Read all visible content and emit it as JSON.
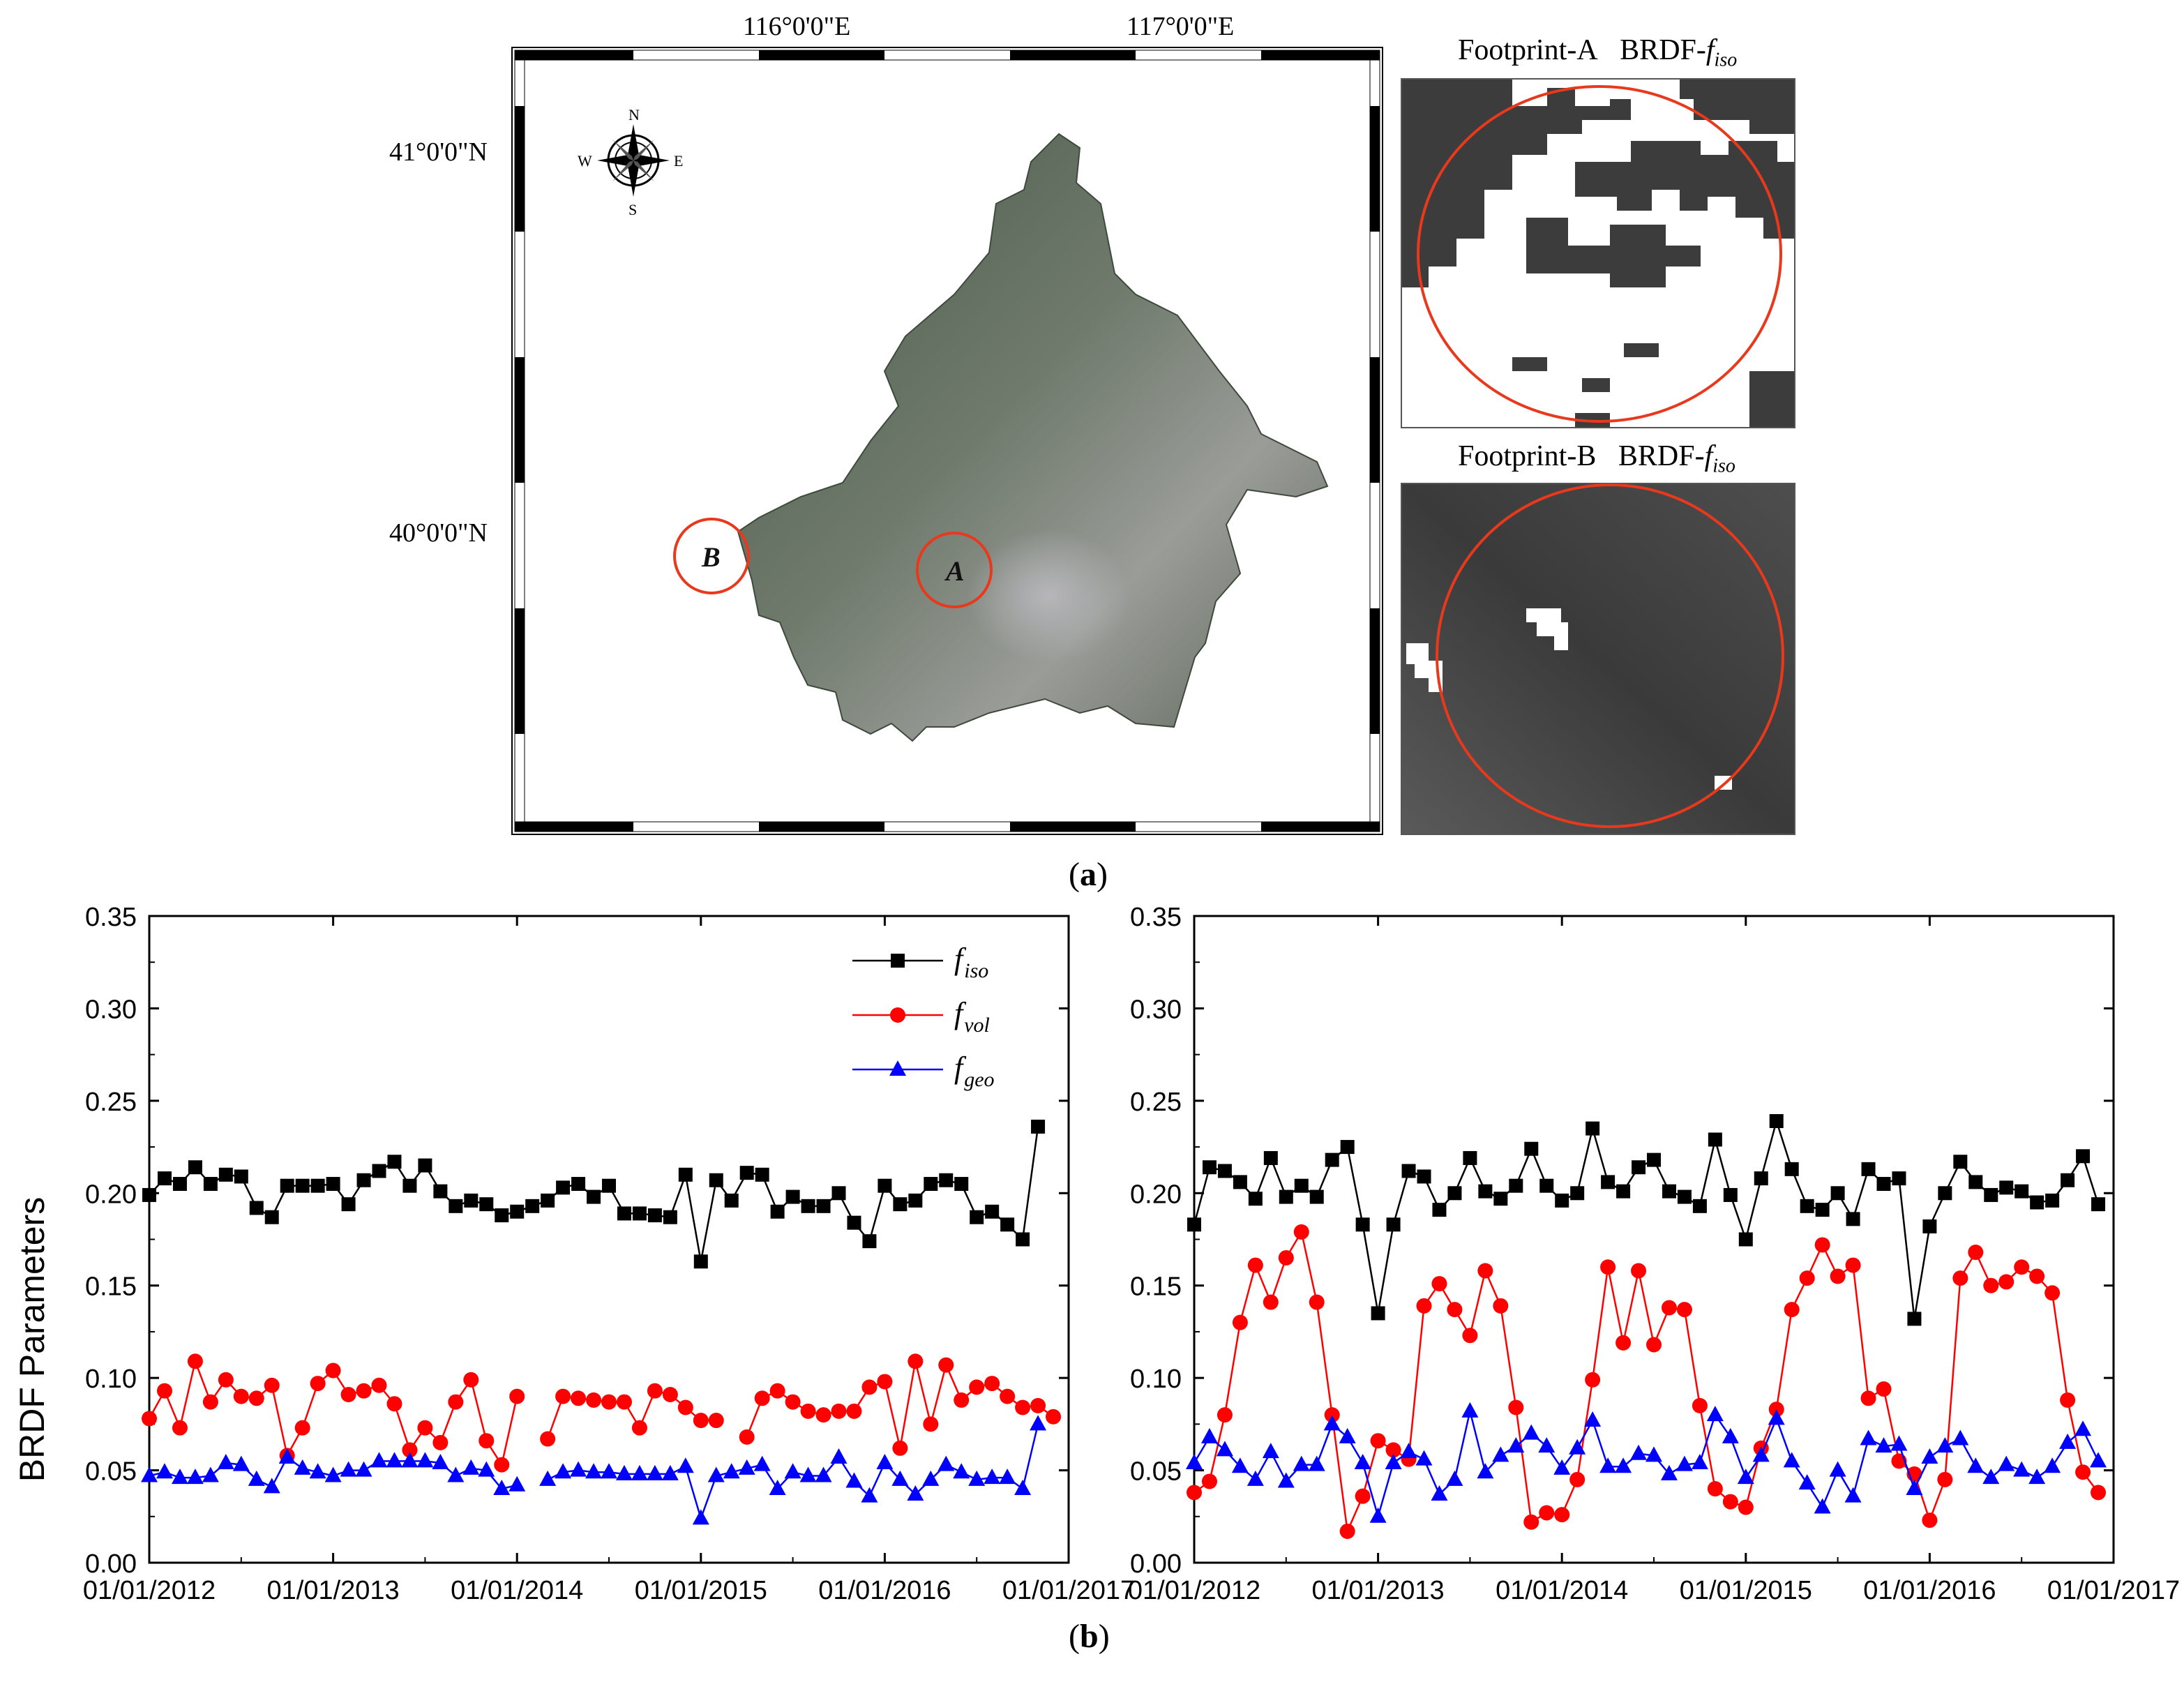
{
  "panel_labels": {
    "a": "a",
    "b": "b"
  },
  "map": {
    "lon_labels": [
      "116°0'0\"E",
      "117°0'0\"E"
    ],
    "lat_labels": [
      "41°0'0\"N",
      "40°0'0\"N"
    ],
    "compass": {
      "n": "N",
      "s": "S",
      "e": "E",
      "w": "W"
    },
    "site_labels": [
      "A",
      "B"
    ]
  },
  "footprints": [
    {
      "name": "Footprint-A",
      "param": "BRDF-",
      "f": "f",
      "sub": "iso"
    },
    {
      "name": "Footprint-B",
      "param": "BRDF-",
      "f": "f",
      "sub": "iso"
    }
  ],
  "colors": {
    "iso": "#000000",
    "vol": "#ff0000",
    "geo": "#0000ff",
    "circle": "#e8391d"
  },
  "chart_data": [
    {
      "type": "line",
      "title": "Footprint-A",
      "xlabel": "",
      "ylabel": "BRDF  Parameters",
      "ylim": [
        0,
        0.35
      ],
      "yticks": [
        "0.00",
        "0.05",
        "0.10",
        "0.15",
        "0.20",
        "0.25",
        "0.30",
        "0.35"
      ],
      "xlim": [
        0,
        60
      ],
      "xticks": [
        "01/01/2012",
        "01/01/2013",
        "01/01/2014",
        "01/01/2015",
        "01/01/2016",
        "01/01/2017"
      ],
      "legend": [
        {
          "f": "f",
          "sub": "iso",
          "marker": "square"
        },
        {
          "f": "f",
          "sub": "vol",
          "marker": "circle"
        },
        {
          "f": "f",
          "sub": "geo",
          "marker": "triangle"
        }
      ],
      "legend_position": "top-right",
      "x": [
        0,
        1,
        2,
        3,
        4,
        5,
        6,
        7,
        8,
        9,
        10,
        11,
        12,
        13,
        14,
        15,
        16,
        17,
        18,
        19,
        20,
        21,
        22,
        23,
        24,
        25,
        26,
        27,
        28,
        29,
        30,
        31,
        32,
        33,
        34,
        35,
        36,
        37,
        38,
        39,
        40,
        41,
        42,
        43,
        44,
        45,
        46,
        47,
        48,
        49,
        50,
        51,
        52,
        53,
        54,
        55,
        56,
        57,
        58,
        59
      ],
      "series": [
        {
          "name": "f_iso",
          "marker": "square",
          "values": [
            0.199,
            0.208,
            0.205,
            0.214,
            0.205,
            0.21,
            0.209,
            0.192,
            0.187,
            0.204,
            0.204,
            0.204,
            0.205,
            0.194,
            0.207,
            0.212,
            0.217,
            0.204,
            0.215,
            0.201,
            0.193,
            0.196,
            0.194,
            0.188,
            0.19,
            0.193,
            0.196,
            0.203,
            0.205,
            0.198,
            0.204,
            0.189,
            0.189,
            0.188,
            0.187,
            0.21,
            0.163,
            0.207,
            0.196,
            0.211,
            0.21,
            0.19,
            0.198,
            0.193,
            0.193,
            0.2,
            0.184,
            0.174,
            0.204,
            0.194,
            0.196,
            0.205,
            0.207,
            0.205,
            0.187,
            0.19,
            0.183,
            0.175,
            0.236,
            null
          ]
        },
        {
          "name": "f_vol",
          "marker": "circle",
          "values": [
            0.078,
            0.093,
            0.073,
            0.109,
            0.087,
            0.099,
            0.09,
            0.089,
            0.096,
            0.058,
            0.073,
            0.097,
            0.104,
            0.091,
            0.093,
            0.096,
            0.086,
            0.061,
            0.073,
            0.065,
            0.087,
            0.099,
            0.066,
            0.053,
            0.09,
            null,
            0.067,
            0.09,
            0.089,
            0.088,
            0.087,
            0.087,
            0.073,
            0.093,
            0.091,
            0.084,
            0.077,
            0.077,
            null,
            0.068,
            0.089,
            0.093,
            0.087,
            0.082,
            0.08,
            0.082,
            0.082,
            0.095,
            0.098,
            0.062,
            0.109,
            0.075,
            0.107,
            0.088,
            0.095,
            0.097,
            0.09,
            0.084,
            0.085,
            0.079
          ]
        },
        {
          "name": "f_geo",
          "marker": "triangle",
          "values": [
            0.047,
            0.049,
            0.046,
            0.046,
            0.047,
            0.054,
            0.053,
            0.045,
            0.041,
            0.057,
            0.051,
            0.049,
            0.047,
            0.05,
            0.05,
            0.055,
            0.055,
            0.055,
            0.055,
            0.054,
            0.047,
            0.051,
            0.05,
            0.04,
            0.042,
            null,
            0.045,
            0.049,
            0.05,
            0.049,
            0.049,
            0.048,
            0.048,
            0.048,
            0.048,
            0.052,
            0.024,
            0.047,
            0.049,
            0.051,
            0.053,
            0.04,
            0.049,
            0.047,
            0.047,
            0.057,
            0.044,
            0.036,
            0.054,
            0.045,
            0.037,
            0.045,
            0.053,
            0.049,
            0.045,
            0.046,
            0.046,
            0.04,
            0.075,
            null
          ]
        }
      ]
    },
    {
      "type": "line",
      "title": "Footprint-B",
      "xlabel": "",
      "ylabel": "",
      "ylim": [
        0,
        0.35
      ],
      "yticks": [
        "0.00",
        "0.05",
        "0.10",
        "0.15",
        "0.20",
        "0.25",
        "0.30",
        "0.35"
      ],
      "xlim": [
        0,
        60
      ],
      "xticks": [
        "01/01/2012",
        "01/01/2013",
        "01/01/2014",
        "01/01/2015",
        "01/01/2016",
        "01/01/2017"
      ],
      "x": [
        0,
        1,
        2,
        3,
        4,
        5,
        6,
        7,
        8,
        9,
        10,
        11,
        12,
        13,
        14,
        15,
        16,
        17,
        18,
        19,
        20,
        21,
        22,
        23,
        24,
        25,
        26,
        27,
        28,
        29,
        30,
        31,
        32,
        33,
        34,
        35,
        36,
        37,
        38,
        39,
        40,
        41,
        42,
        43,
        44,
        45,
        46,
        47,
        48,
        49,
        50,
        51,
        52,
        53,
        54,
        55,
        56,
        57,
        58,
        59
      ],
      "series": [
        {
          "name": "f_iso",
          "marker": "square",
          "values": [
            0.183,
            0.214,
            0.212,
            0.206,
            0.197,
            0.219,
            0.198,
            0.204,
            0.198,
            0.218,
            0.225,
            0.183,
            0.135,
            0.183,
            0.212,
            0.209,
            0.191,
            0.2,
            0.219,
            0.201,
            0.197,
            0.204,
            0.224,
            0.204,
            0.196,
            0.2,
            0.235,
            0.206,
            0.201,
            0.214,
            0.218,
            0.201,
            0.198,
            0.193,
            0.229,
            0.199,
            0.175,
            0.208,
            0.239,
            0.213,
            0.193,
            0.191,
            0.2,
            0.186,
            0.213,
            0.205,
            0.208,
            0.132,
            0.182,
            0.2,
            0.217,
            0.206,
            0.199,
            0.203,
            0.201,
            0.195,
            0.196,
            0.207,
            0.22,
            0.194
          ]
        },
        {
          "name": "f_vol",
          "marker": "circle",
          "values": [
            0.038,
            0.044,
            0.08,
            0.13,
            0.161,
            0.141,
            0.165,
            0.179,
            0.141,
            0.08,
            0.017,
            0.036,
            0.066,
            0.061,
            0.056,
            0.139,
            0.151,
            0.137,
            0.123,
            0.158,
            0.139,
            0.084,
            0.022,
            0.027,
            0.026,
            0.045,
            0.099,
            0.16,
            0.119,
            0.158,
            0.118,
            0.138,
            0.137,
            0.085,
            0.04,
            0.033,
            0.03,
            0.062,
            0.083,
            0.137,
            0.154,
            0.172,
            0.155,
            0.161,
            0.089,
            0.094,
            0.055,
            0.048,
            0.023,
            0.045,
            0.154,
            0.168,
            0.15,
            0.152,
            0.16,
            0.155,
            0.146,
            0.088,
            0.049,
            0.038
          ]
        },
        {
          "name": "f_geo",
          "marker": "triangle",
          "values": [
            0.054,
            0.068,
            0.061,
            0.052,
            0.045,
            0.06,
            0.044,
            0.053,
            0.053,
            0.075,
            0.068,
            0.054,
            0.025,
            0.054,
            0.06,
            0.056,
            0.037,
            0.045,
            0.082,
            0.049,
            0.058,
            0.063,
            0.07,
            0.063,
            0.051,
            0.062,
            0.077,
            0.052,
            0.052,
            0.059,
            0.058,
            0.048,
            0.053,
            0.054,
            0.08,
            0.068,
            0.046,
            0.058,
            0.078,
            0.055,
            0.043,
            0.03,
            0.05,
            0.036,
            0.067,
            0.063,
            0.064,
            0.04,
            0.057,
            0.063,
            0.067,
            0.052,
            0.046,
            0.053,
            0.05,
            0.046,
            0.052,
            0.065,
            0.072,
            0.055
          ]
        }
      ]
    }
  ]
}
